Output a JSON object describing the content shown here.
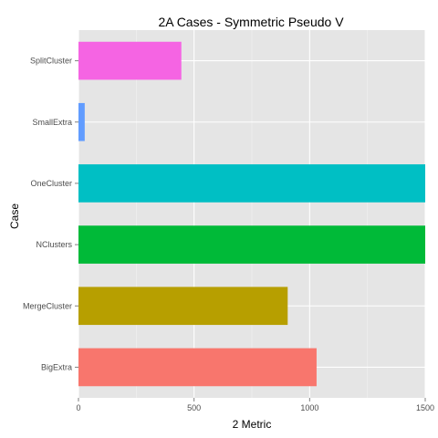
{
  "chart_data": {
    "type": "bar",
    "orientation": "horizontal",
    "title": "2A Cases - Symmetric Pseudo V",
    "xlabel": "2 Metric",
    "ylabel": "Case",
    "categories": [
      "BigExtra",
      "MergeCluster",
      "NClusters",
      "OneCluster",
      "SmallExtra",
      "SplitCluster"
    ],
    "values": [
      1030,
      905,
      1500,
      1500,
      27,
      445
    ],
    "colors": [
      "#F8766D",
      "#B79F00",
      "#00BA38",
      "#00BFC4",
      "#619CFF",
      "#F564E3"
    ],
    "xlim": [
      0,
      1500
    ],
    "x_ticks": [
      0,
      500,
      1000,
      1500
    ],
    "x_tick_labels": [
      "0",
      "500",
      "1000",
      "1500"
    ],
    "grid": true,
    "panel_background": "#E5E5E5",
    "grid_color": "#FFFFFF"
  }
}
